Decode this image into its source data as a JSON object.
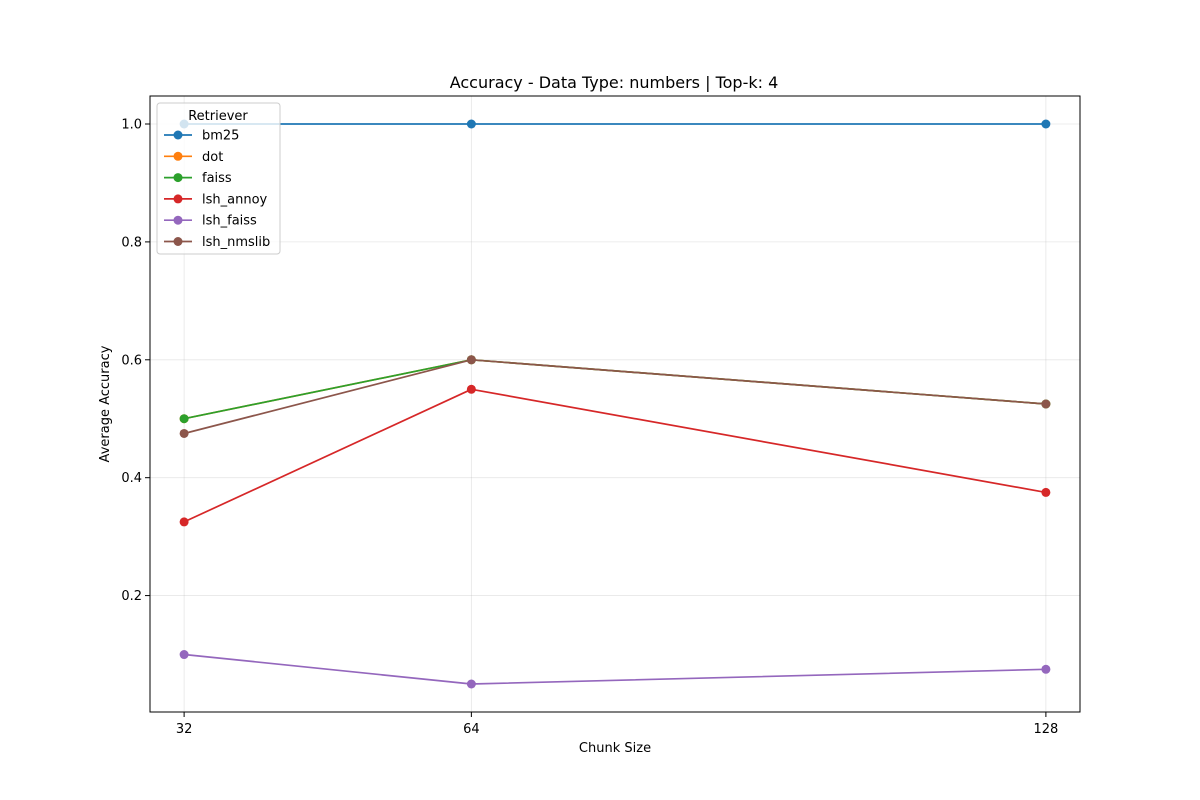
{
  "chart_data": {
    "type": "line",
    "title": "Accuracy - Data Type: numbers | Top-k: 4",
    "xlabel": "Chunk Size",
    "ylabel": "Average Accuracy",
    "x": [
      32,
      64,
      128
    ],
    "x_tick_labels": [
      "32",
      "64",
      "128"
    ],
    "xlim": [
      28.2,
      131.8
    ],
    "ylim": [
      0.0025,
      1.0475
    ],
    "y_ticks": [
      0.2,
      0.4,
      0.6,
      0.8,
      1.0
    ],
    "y_tick_labels": [
      "0.2",
      "0.4",
      "0.6",
      "0.8",
      "1.0"
    ],
    "grid": true,
    "legend": {
      "title": "Retriever",
      "position": "top-left"
    },
    "series": [
      {
        "name": "bm25",
        "color": "#1f77b4",
        "values": [
          1.0,
          1.0,
          1.0
        ]
      },
      {
        "name": "dot",
        "color": "#ff7f0e",
        "values": [
          0.5,
          0.6,
          0.525
        ]
      },
      {
        "name": "faiss",
        "color": "#2ca02c",
        "values": [
          0.5,
          0.6,
          0.525
        ]
      },
      {
        "name": "lsh_annoy",
        "color": "#d62728",
        "values": [
          0.325,
          0.55,
          0.375
        ]
      },
      {
        "name": "lsh_faiss",
        "color": "#9467bd",
        "values": [
          0.1,
          0.05,
          0.075
        ]
      },
      {
        "name": "lsh_nmslib",
        "color": "#8c564b",
        "values": [
          0.475,
          0.6,
          0.525
        ]
      }
    ]
  }
}
